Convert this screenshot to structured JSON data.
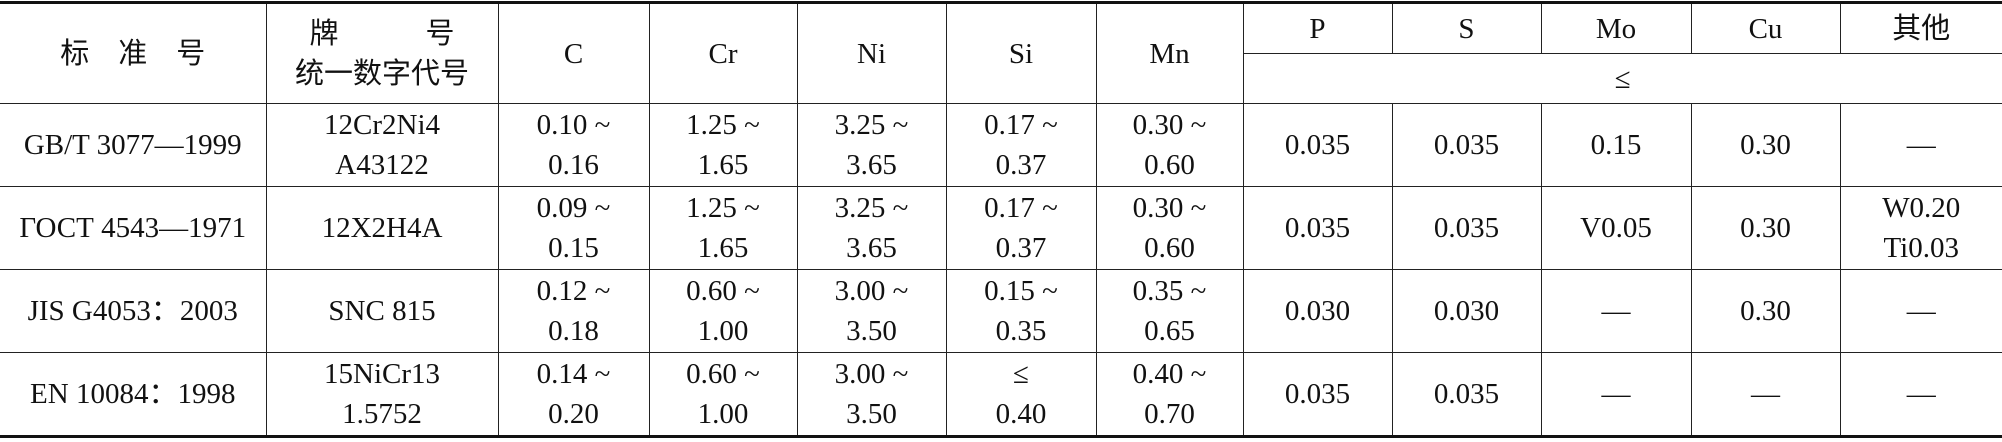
{
  "header": {
    "standard": "标　准　号",
    "grade": [
      "牌　　　号",
      "统一数字代号"
    ],
    "elements": [
      "C",
      "Cr",
      "Ni",
      "Si",
      "Mn"
    ],
    "limit_elements": [
      "P",
      "S",
      "Mo",
      "Cu",
      "其他"
    ],
    "limit_note": "≤"
  },
  "rows": [
    [
      [
        "GB/T 3077—1999"
      ],
      [
        "12Cr2Ni4",
        "A43122"
      ],
      [
        "0.10 ~",
        "0.16"
      ],
      [
        "1.25 ~",
        "1.65"
      ],
      [
        "3.25 ~",
        "3.65"
      ],
      [
        "0.17 ~",
        "0.37"
      ],
      [
        "0.30 ~",
        "0.60"
      ],
      [
        "0.035"
      ],
      [
        "0.035"
      ],
      [
        "0.15"
      ],
      [
        "0.30"
      ],
      [
        "—"
      ]
    ],
    [
      [
        "ГОСТ 4543—1971"
      ],
      [
        "12Х2Н4А"
      ],
      [
        "0.09 ~",
        "0.15"
      ],
      [
        "1.25 ~",
        "1.65"
      ],
      [
        "3.25 ~",
        "3.65"
      ],
      [
        "0.17 ~",
        "0.37"
      ],
      [
        "0.30 ~",
        "0.60"
      ],
      [
        "0.035"
      ],
      [
        "0.035"
      ],
      [
        "V0.05"
      ],
      [
        "0.30"
      ],
      [
        "W0.20",
        "Ti0.03"
      ]
    ],
    [
      [
        "JIS G4053：2003"
      ],
      [
        "SNC 815"
      ],
      [
        "0.12 ~",
        "0.18"
      ],
      [
        "0.60 ~",
        "1.00"
      ],
      [
        "3.00 ~",
        "3.50"
      ],
      [
        "0.15 ~",
        "0.35"
      ],
      [
        "0.35 ~",
        "0.65"
      ],
      [
        "0.030"
      ],
      [
        "0.030"
      ],
      [
        "—"
      ],
      [
        "0.30"
      ],
      [
        "—"
      ]
    ],
    [
      [
        "EN 10084：1998"
      ],
      [
        "15NiCr13",
        "1.5752"
      ],
      [
        "0.14 ~",
        "0.20"
      ],
      [
        "0.60 ~",
        "1.00"
      ],
      [
        "3.00 ~",
        "3.50"
      ],
      [
        "≤",
        "0.40"
      ],
      [
        "0.40 ~",
        "0.70"
      ],
      [
        "0.035"
      ],
      [
        "0.035"
      ],
      [
        "—"
      ],
      [
        "—"
      ],
      [
        "—"
      ]
    ]
  ]
}
